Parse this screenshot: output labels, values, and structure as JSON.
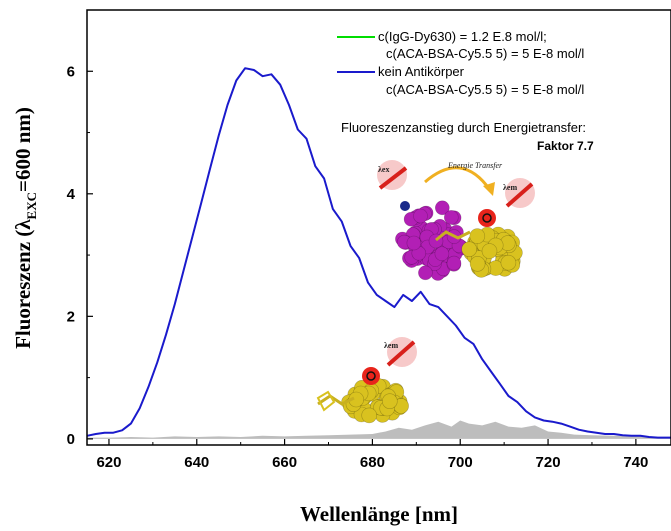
{
  "chart_data": {
    "type": "line",
    "xlabel": "Wellenlänge [nm]",
    "ylabel": {
      "main": "Fluoreszenz (λ",
      "sub": "EXC",
      "tail": "=600 nm)"
    },
    "xlim": [
      615,
      748
    ],
    "ylim": [
      -0.1,
      7.0
    ],
    "xticks": [
      620,
      640,
      660,
      680,
      700,
      720,
      740
    ],
    "yticks": [
      0,
      2,
      4,
      6
    ],
    "xtick_labels": [
      "620",
      "640",
      "660",
      "680",
      "700",
      "720",
      "740"
    ],
    "ytick_labels": [
      "0",
      "2",
      "4",
      "6"
    ],
    "grid": false,
    "legend_position": "top-right",
    "series": [
      {
        "name": "kein Antikörper",
        "legend_lines": [
          "kein Antikörper",
          "c(ACA-BSA-Cy5.5 5) = 5 E-8 mol/l"
        ],
        "color": "#1a1acc",
        "style": "line",
        "x": [
          615,
          617,
          619,
          621,
          623,
          625,
          627,
          629,
          631,
          633,
          635,
          637,
          639,
          641,
          643,
          645,
          647,
          649,
          651,
          653,
          655,
          657,
          659,
          661,
          663,
          665,
          667,
          669,
          671,
          673,
          675,
          677,
          679,
          681,
          683,
          685,
          687,
          689,
          691,
          693,
          695,
          697,
          699,
          701,
          703,
          705,
          707,
          709,
          711,
          713,
          715,
          717,
          719,
          721,
          723,
          725,
          727,
          729,
          731,
          733,
          735,
          737,
          739,
          741,
          743,
          745,
          748
        ],
        "y": [
          0.05,
          0.08,
          0.1,
          0.1,
          0.14,
          0.25,
          0.5,
          0.85,
          1.25,
          1.7,
          2.2,
          2.75,
          3.3,
          3.85,
          4.4,
          4.95,
          5.45,
          5.85,
          6.05,
          6.02,
          5.92,
          5.95,
          5.78,
          5.45,
          5.05,
          4.9,
          4.45,
          4.25,
          3.75,
          3.55,
          3.15,
          2.95,
          2.55,
          2.35,
          2.25,
          2.15,
          2.35,
          2.25,
          2.4,
          2.2,
          2.15,
          2.0,
          1.85,
          1.65,
          1.55,
          1.3,
          1.1,
          0.9,
          0.7,
          0.6,
          0.45,
          0.35,
          0.3,
          0.28,
          0.25,
          0.2,
          0.15,
          0.12,
          0.1,
          0.08,
          0.08,
          0.06,
          0.05,
          0.05,
          0.03,
          0.02,
          0.02
        ]
      },
      {
        "name": "c(IgG-Dy630) = 1.2 E.8 mol/l;",
        "legend_lines": [
          "c(IgG-Dy630) = 1.2 E.8 mol/l;",
          "c(ACA-BSA-Cy5.5 5) = 5 E-8 mol/l"
        ],
        "color": "#00dd00",
        "style": "line",
        "x": [],
        "y": []
      },
      {
        "name": "",
        "color": "#bdbdbd",
        "style": "area",
        "x": [
          615,
          620,
          625,
          630,
          635,
          640,
          645,
          650,
          655,
          660,
          665,
          670,
          675,
          680,
          683,
          686,
          689,
          692,
          695,
          698,
          700,
          702,
          705,
          708,
          711,
          714,
          717,
          720,
          723,
          726,
          730,
          735,
          740,
          745,
          748
        ],
        "y": [
          0.02,
          0.02,
          0.03,
          0.02,
          0.04,
          0.03,
          0.04,
          0.03,
          0.05,
          0.04,
          0.05,
          0.06,
          0.07,
          0.08,
          0.12,
          0.18,
          0.15,
          0.22,
          0.28,
          0.2,
          0.3,
          0.25,
          0.22,
          0.28,
          0.2,
          0.18,
          0.22,
          0.12,
          0.1,
          0.07,
          0.06,
          0.05,
          0.04,
          0.03,
          0.02
        ]
      }
    ],
    "annotations": {
      "line1": "Fluoreszenzanstieg durch Energietransfer:",
      "line2": "Faktor 7.7"
    }
  },
  "inset": {
    "lambda_ex": "λex",
    "lambda_em_top": "λem",
    "lambda_em_bottom": "λem",
    "transfer": "Energie Transfer",
    "colors": {
      "protein_magenta": "#b21fb5",
      "protein_yellow": "#d9c21f",
      "dye_red": "#e8241b",
      "arrow": "#f0b021"
    }
  }
}
